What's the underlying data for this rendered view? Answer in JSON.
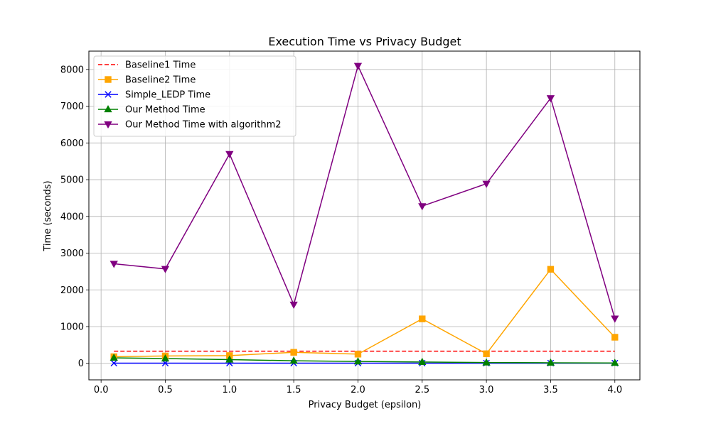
{
  "chart_data": {
    "type": "line",
    "title": "Execution Time vs Privacy Budget",
    "xlabel": "Privacy Budget (epsilon)",
    "ylabel": "Time (seconds)",
    "x": [
      0.1,
      0.5,
      1.0,
      1.5,
      2.0,
      2.5,
      3.0,
      3.5,
      4.0
    ],
    "xlim": [
      -0.095,
      4.195
    ],
    "ylim": [
      -450,
      8500
    ],
    "xticks": [
      0.0,
      0.5,
      1.0,
      1.5,
      2.0,
      2.5,
      3.0,
      3.5,
      4.0
    ],
    "xtick_labels": [
      "0.0",
      "0.5",
      "1.0",
      "1.5",
      "2.0",
      "2.5",
      "3.0",
      "3.5",
      "4.0"
    ],
    "yticks": [
      0,
      1000,
      2000,
      3000,
      4000,
      5000,
      6000,
      7000,
      8000
    ],
    "ytick_labels": [
      "0",
      "1000",
      "2000",
      "3000",
      "4000",
      "5000",
      "6000",
      "7000",
      "8000"
    ],
    "grid": true,
    "legend_position": "top-left",
    "series": [
      {
        "name": "Baseline1 Time",
        "color": "#ff0000",
        "dash": "dashed",
        "marker": "none",
        "values": [
          330,
          330,
          330,
          330,
          330,
          330,
          330,
          330,
          330
        ]
      },
      {
        "name": "Baseline2 Time",
        "color": "#ffa500",
        "dash": "solid",
        "marker": "square",
        "values": [
          180,
          200,
          210,
          300,
          250,
          1210,
          260,
          2560,
          710
        ]
      },
      {
        "name": "Simple_LEDP Time",
        "color": "#0000ff",
        "dash": "solid",
        "marker": "x",
        "values": [
          5,
          5,
          5,
          5,
          5,
          5,
          5,
          5,
          5
        ]
      },
      {
        "name": "Our Method Time",
        "color": "#008000",
        "dash": "solid",
        "marker": "triangle-up",
        "values": [
          150,
          130,
          100,
          70,
          50,
          35,
          20,
          15,
          10
        ]
      },
      {
        "name": "Our Method Time with algorithm2",
        "color": "#800080",
        "dash": "solid",
        "marker": "triangle-down",
        "values": [
          2710,
          2570,
          5700,
          1600,
          8100,
          4280,
          4890,
          7220,
          1220
        ]
      }
    ]
  }
}
